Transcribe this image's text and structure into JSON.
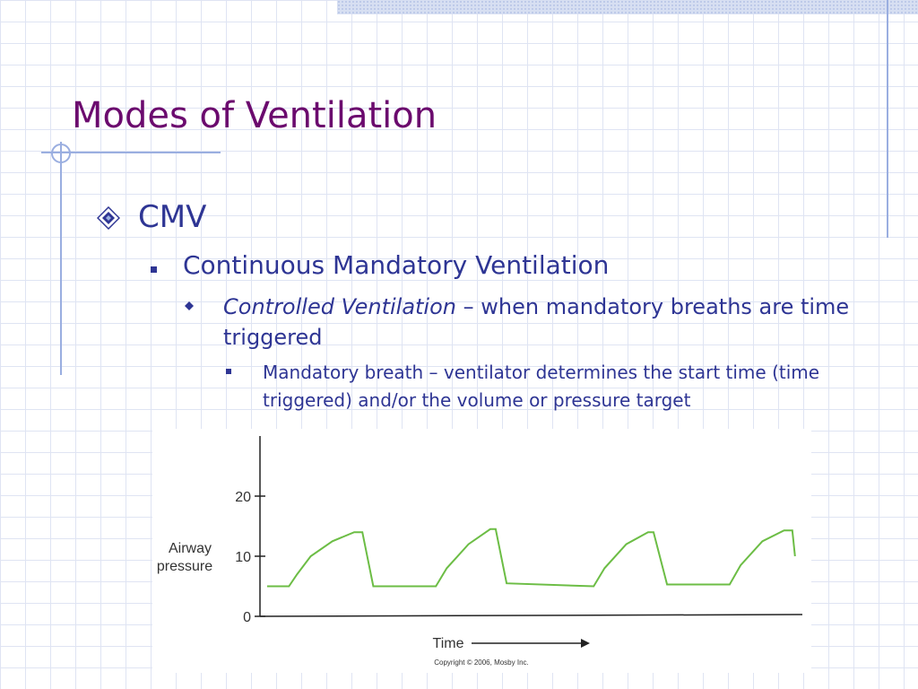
{
  "slide": {
    "title": "Modes of Ventilation",
    "bullet1": "CMV",
    "bullet2": "Continuous Mandatory Ventilation",
    "bullet3_italic": "Controlled Ventilation",
    "bullet3_rest": " – when mandatory breaths are time triggered",
    "bullet4": "Mandatory breath – ventilator determines the start time (time triggered) and/or the volume or pressure target"
  },
  "colors": {
    "title": "#6b0a6e",
    "body_text": "#2e3594",
    "accent_lines": "#9aaee0",
    "waveform": "#6cbd45"
  },
  "icons": {
    "level1": "diamond-bullet-icon",
    "level2": "square-bullet-icon",
    "level3": "small-diamond-bullet-icon",
    "level4": "square-bullet-icon"
  },
  "chart_data": {
    "type": "line",
    "ylabel": "Airway pressure",
    "xlabel": "Time",
    "yticks": [
      0,
      10,
      20
    ],
    "ylim": [
      0,
      30
    ],
    "xlim": [
      0,
      100
    ],
    "credit": "Copyright © 2006, Mosby Inc.",
    "series": [
      {
        "x": [
          0,
          4,
          5.5,
          8,
          12,
          16,
          17.5,
          19.5,
          31,
          33,
          37,
          41,
          42,
          44,
          60,
          62,
          66,
          70,
          71,
          73.5,
          85,
          87,
          91,
          95,
          96.5,
          97
        ],
        "y": [
          5,
          5,
          7,
          10,
          12.5,
          14,
          14,
          5,
          5,
          8,
          12,
          14.5,
          14.5,
          5.5,
          5,
          8,
          12,
          14,
          14,
          5.3,
          5.3,
          8.5,
          12.5,
          14.3,
          14.3,
          10
        ]
      }
    ]
  }
}
